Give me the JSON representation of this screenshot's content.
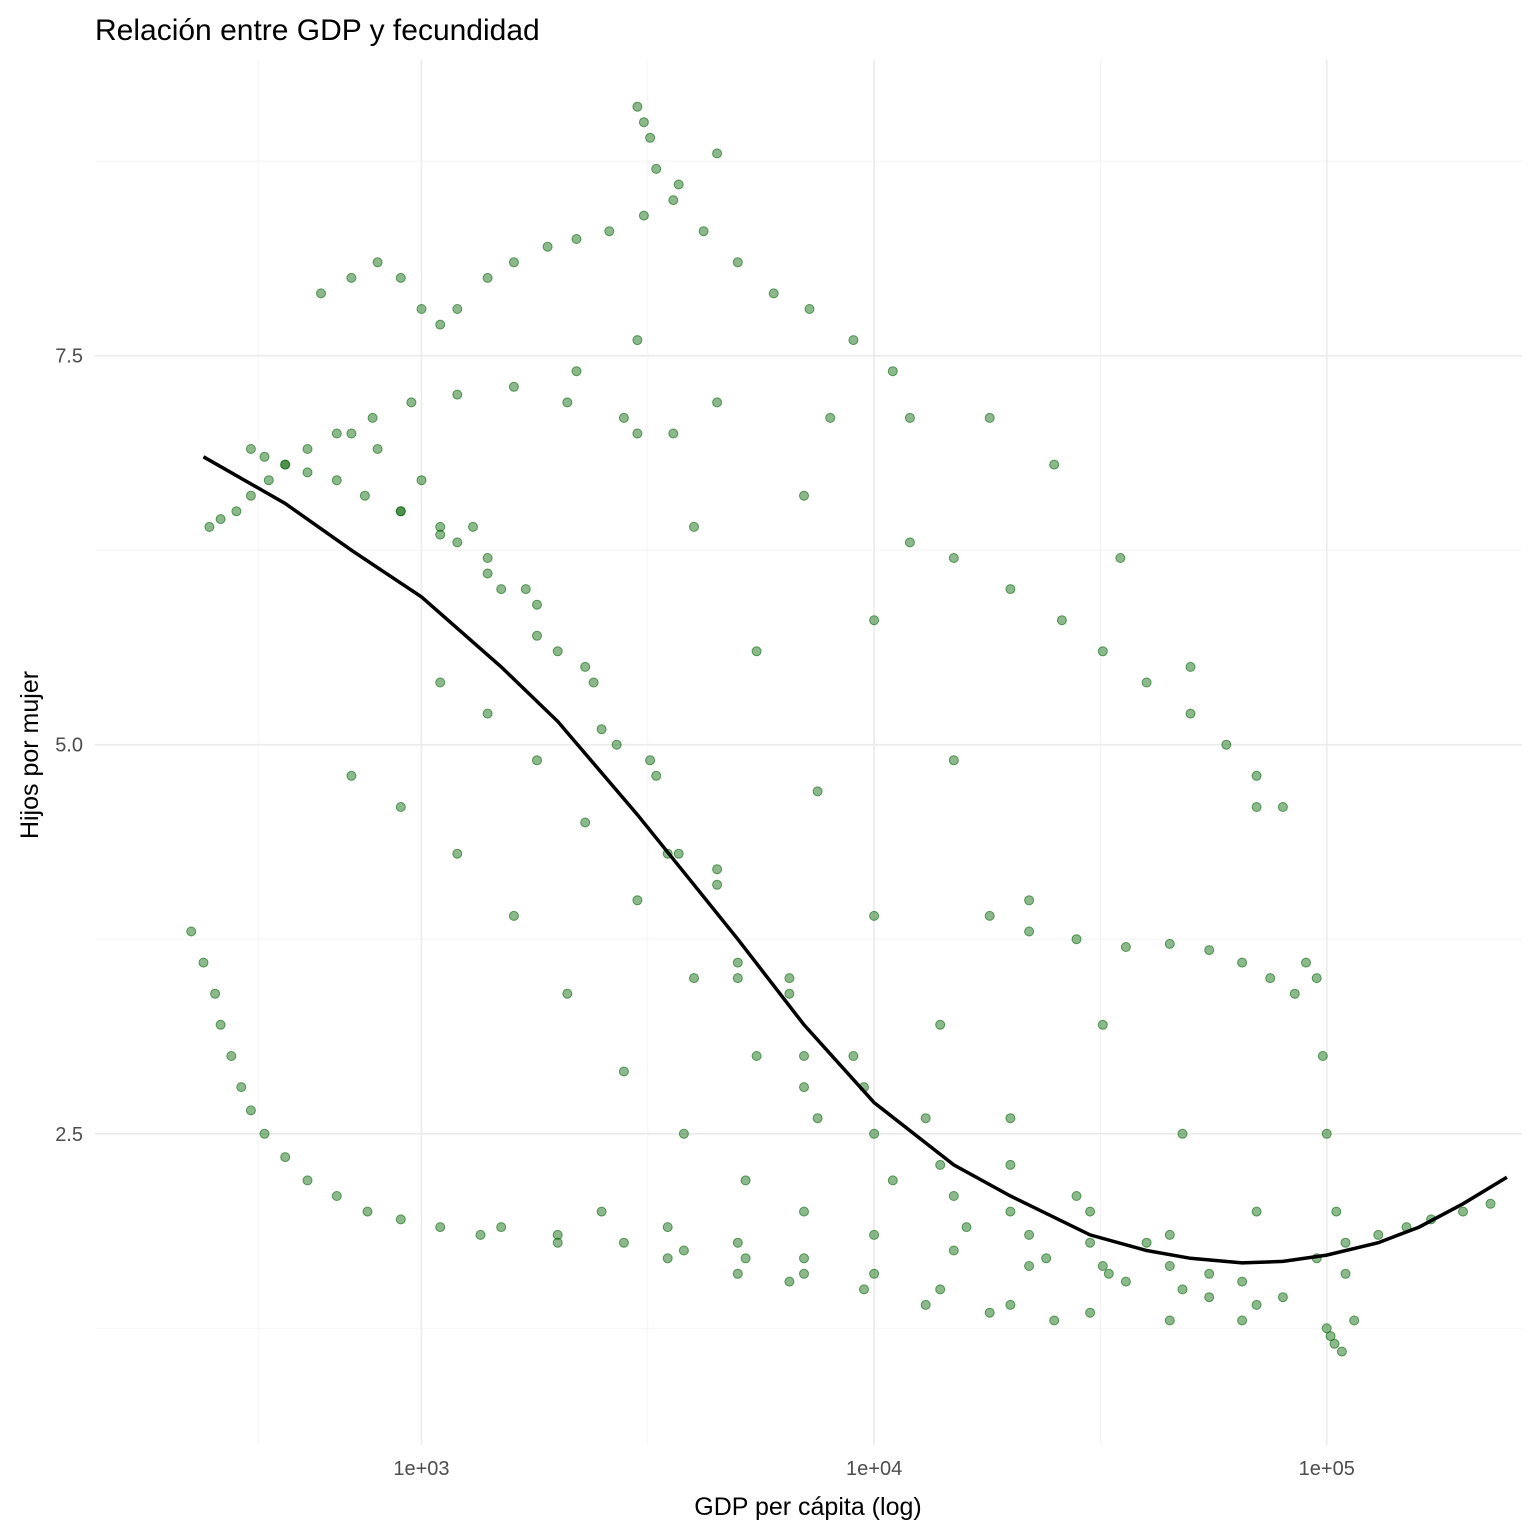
{
  "chart_data": {
    "type": "scatter",
    "title": "Relación entre GDP y fecundidad",
    "xlabel": "GDP per cápita (log)",
    "ylabel": "Hijos por mujer",
    "x_scale": "log10",
    "xlim": [
      190,
      270000
    ],
    "ylim": [
      0.5,
      9.4
    ],
    "x_ticks": [
      1000,
      10000,
      100000
    ],
    "x_tick_labels": [
      "1e+03",
      "1e+04",
      "1e+05"
    ],
    "y_ticks": [
      2.5,
      5.0,
      7.5
    ],
    "y_tick_labels": [
      "2.5",
      "5.0",
      "7.5"
    ],
    "grid": true,
    "legend": "none",
    "colors": {
      "points": "#006400",
      "trend": "#000000"
    },
    "series": [
      {
        "kind": "points",
        "x": [
          310,
          330,
          350,
          360,
          380,
          400,
          420,
          450,
          500,
          560,
          650,
          760,
          900,
          1100,
          1350,
          2000,
          3500,
          5000,
          6500,
          340,
          360,
          390,
          420,
          460,
          500,
          560,
          650,
          780,
          950,
          1200,
          1600,
          2100,
          2800,
          3600,
          420,
          450,
          500,
          560,
          650,
          750,
          900,
          1100,
          1400,
          1800,
          2500,
          3500,
          5000,
          7000,
          700,
          800,
          1000,
          1300,
          1700,
          2300,
          3200,
          4500,
          6500,
          9000,
          13000,
          20000,
          30000,
          45000,
          900,
          1100,
          1400,
          1800,
          2400,
          3300,
          4500,
          6500,
          9500,
          14000,
          20000,
          30000,
          45000,
          65000,
          1200,
          1500,
          2000,
          2700,
          3700,
          5000,
          7000,
          10000,
          15000,
          22000,
          32000,
          48000,
          70000,
          2200,
          3000,
          4000,
          5500,
          7500,
          10000,
          14000,
          20000,
          28000,
          40000,
          55000,
          80000,
          3000,
          4500,
          7000,
          10000,
          15000,
          22000,
          32000,
          48000,
          70000,
          95000,
          1100,
          1400,
          1800,
          2300,
          3000,
          4000,
          5500,
          7500,
          11000,
          16000,
          24000,
          36000,
          55000,
          700,
          900,
          1200,
          1600,
          2100,
          2800,
          3800,
          5200,
          7000,
          10000,
          15000,
          22000,
          33000,
          8000,
          12000,
          18000,
          25000,
          35000,
          50000,
          70000,
          90000,
          2500,
          3500,
          5000,
          7000,
          10000,
          14000,
          20000,
          30000,
          45000,
          65000,
          1500,
          2000,
          2800,
          3800,
          5200,
          7000,
          9500,
          13000,
          18000,
          25000,
          600,
          700,
          800,
          900,
          1000,
          1100,
          1200,
          1400,
          1600,
          1900,
          2200,
          2600,
          3100,
          3700,
          4500,
          3000,
          3100,
          3200,
          3300,
          3600,
          4200,
          5000,
          6000,
          7200,
          9000,
          11000,
          12000,
          15000,
          20000,
          26000,
          32000,
          40000,
          50000,
          60000,
          70000,
          80000,
          95000,
          98000,
          100000,
          105000,
          110000,
          115000,
          110000,
          130000,
          150000,
          170000,
          200000,
          230000,
          18000,
          22000,
          28000,
          36000,
          45000,
          55000,
          65000,
          75000,
          85000,
          100000,
          102000,
          104000,
          108000
        ],
        "y": [
          3.8,
          3.6,
          3.4,
          3.2,
          3.0,
          2.8,
          2.65,
          2.5,
          2.35,
          2.2,
          2.1,
          2.0,
          1.95,
          1.9,
          1.85,
          1.8,
          1.7,
          1.6,
          1.55,
          6.4,
          6.45,
          6.5,
          6.6,
          6.7,
          6.8,
          6.9,
          7.0,
          7.1,
          7.2,
          7.25,
          7.3,
          7.2,
          7.1,
          7.0,
          6.9,
          6.85,
          6.8,
          6.75,
          6.7,
          6.6,
          6.5,
          6.35,
          6.1,
          5.7,
          5.1,
          4.3,
          3.5,
          2.8,
          7.0,
          6.9,
          6.7,
          6.4,
          6.0,
          5.5,
          4.9,
          4.2,
          3.5,
          3.0,
          2.6,
          2.3,
          2.0,
          1.85,
          6.5,
          6.4,
          6.2,
          5.9,
          5.4,
          4.8,
          4.1,
          3.4,
          2.8,
          2.3,
          2.0,
          1.8,
          1.65,
          1.55,
          6.3,
          6.0,
          5.6,
          5.0,
          4.3,
          3.6,
          3.0,
          2.5,
          2.1,
          1.85,
          1.65,
          1.5,
          1.4,
          7.4,
          7.0,
          6.4,
          5.6,
          4.7,
          3.9,
          3.2,
          2.6,
          2.1,
          1.8,
          1.6,
          1.45,
          7.6,
          7.2,
          6.6,
          5.8,
          4.9,
          4.0,
          3.2,
          2.5,
          2.0,
          1.7,
          5.4,
          5.2,
          4.9,
          4.5,
          4.0,
          3.5,
          3.0,
          2.6,
          2.2,
          1.9,
          1.7,
          1.55,
          1.45,
          4.8,
          4.6,
          4.3,
          3.9,
          3.4,
          2.9,
          2.5,
          2.2,
          2.0,
          1.85,
          1.75,
          1.65,
          1.6,
          7.1,
          7.1,
          7.1,
          6.8,
          6.2,
          5.5,
          4.6,
          3.6,
          2.0,
          1.9,
          1.8,
          1.7,
          1.6,
          1.5,
          1.4,
          1.35,
          1.3,
          1.3,
          1.9,
          1.85,
          1.8,
          1.75,
          1.7,
          1.6,
          1.5,
          1.4,
          1.35,
          1.3,
          7.9,
          8.0,
          8.1,
          8.0,
          7.8,
          7.7,
          7.8,
          8.0,
          8.1,
          8.2,
          8.25,
          8.3,
          8.4,
          8.6,
          8.8,
          9.1,
          9.0,
          8.9,
          8.7,
          8.5,
          8.3,
          8.1,
          7.9,
          7.8,
          7.6,
          7.4,
          6.3,
          6.2,
          6.0,
          5.8,
          5.6,
          5.4,
          5.2,
          5.0,
          4.8,
          4.6,
          3.5,
          3.0,
          2.5,
          2.0,
          1.6,
          1.3,
          1.8,
          1.85,
          1.9,
          1.95,
          2.0,
          2.05,
          3.9,
          3.8,
          3.75,
          3.7,
          3.72,
          3.68,
          3.6,
          3.5,
          3.4,
          1.25,
          1.2,
          1.15,
          1.1
        ]
      },
      {
        "kind": "trend",
        "x": [
          330,
          500,
          700,
          1000,
          1500,
          2000,
          3000,
          4000,
          5000,
          7000,
          10000,
          15000,
          20000,
          30000,
          40000,
          50000,
          65000,
          80000,
          100000,
          130000,
          160000,
          200000,
          250000
        ],
        "y": [
          6.85,
          6.55,
          6.25,
          5.95,
          5.5,
          5.15,
          4.55,
          4.1,
          3.75,
          3.2,
          2.7,
          2.3,
          2.1,
          1.85,
          1.75,
          1.7,
          1.67,
          1.68,
          1.72,
          1.8,
          1.9,
          2.05,
          2.22
        ]
      }
    ]
  }
}
